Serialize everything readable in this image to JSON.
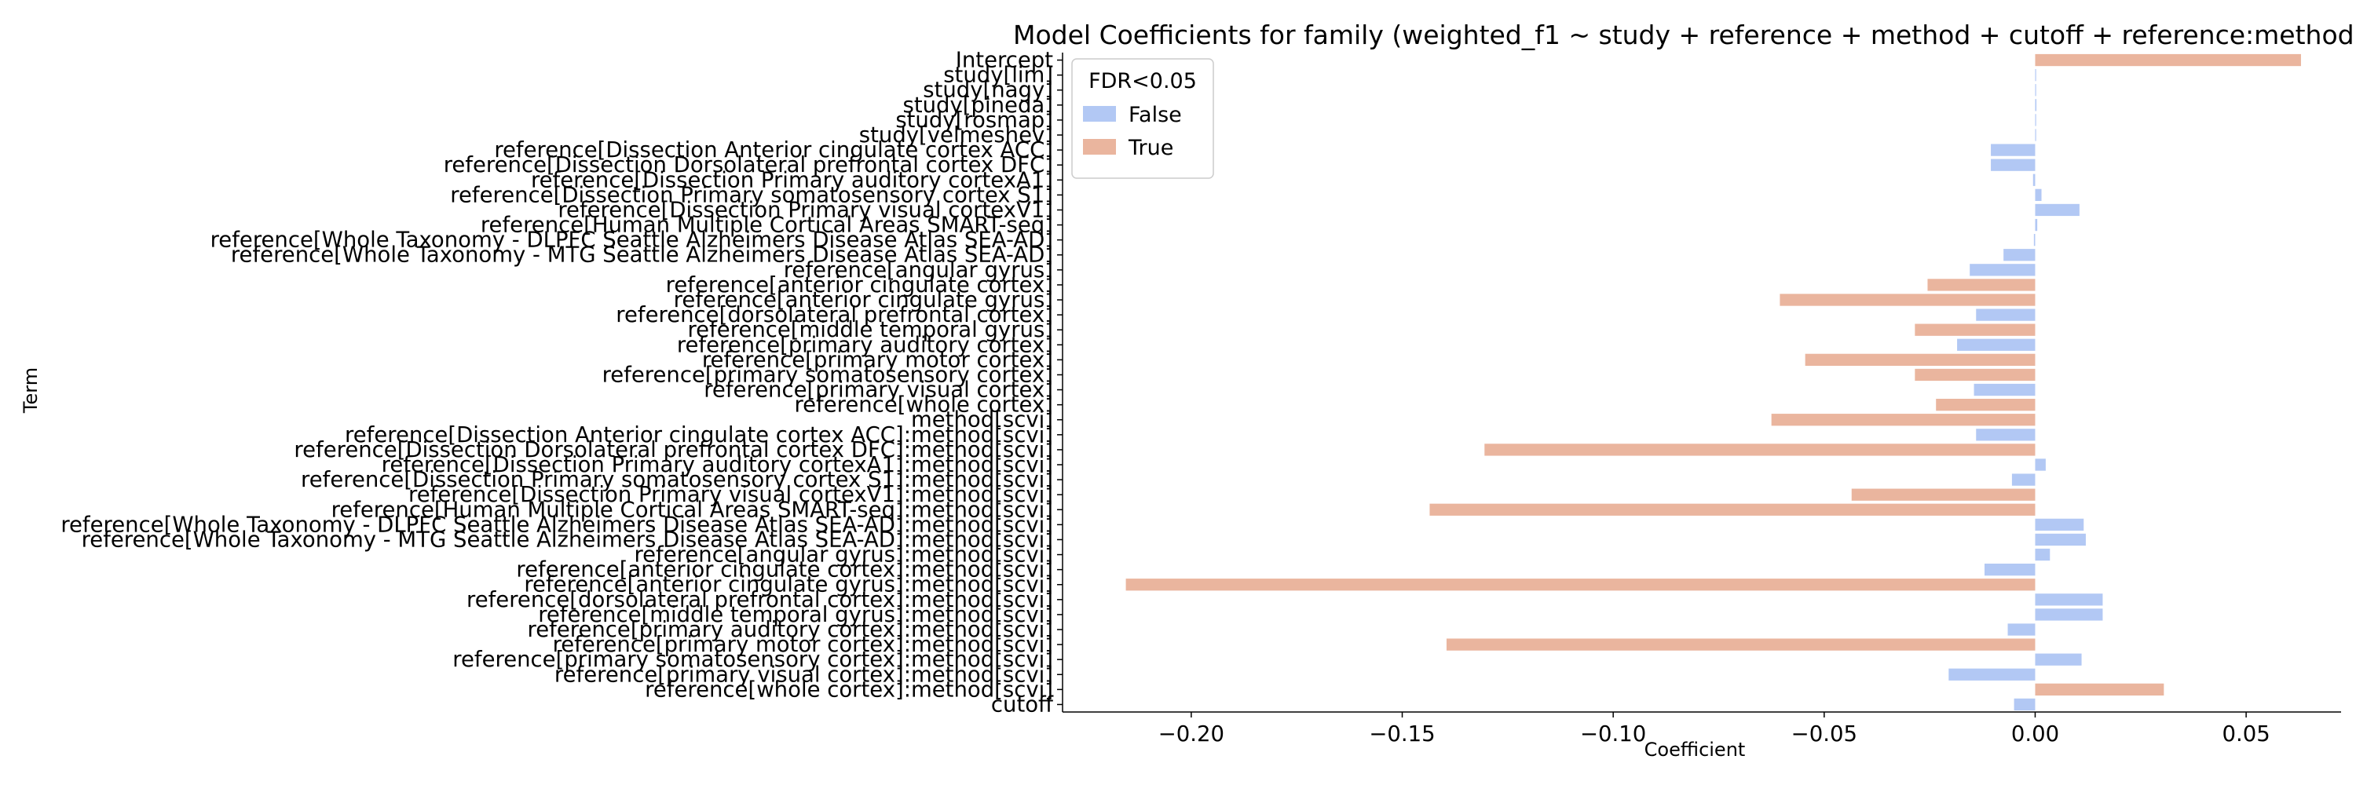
{
  "colors": {
    "False": "#b2c8f4",
    "True": "#eab59e",
    "axis": "#000000",
    "zero": "#b2c8f4"
  },
  "chart_data": {
    "type": "bar",
    "orientation": "horizontal",
    "title": "Model Coefficients for family (weighted_f1 ~ study + reference + method + cutoff + reference:method",
    "xlabel": "Coefficient",
    "ylabel": "Term",
    "xlim": [
      -0.2305,
      0.0725
    ],
    "xticks": [
      -0.2,
      -0.15,
      -0.1,
      -0.05,
      0.0,
      0.05
    ],
    "xtick_labels": [
      "−0.20",
      "−0.15",
      "−0.10",
      "−0.05",
      "0.00",
      "0.05"
    ],
    "grid": false,
    "legend": {
      "title": "FDR<0.05",
      "placement": "top-left",
      "entries": [
        {
          "label": "False",
          "key": "False"
        },
        {
          "label": "True",
          "key": "True"
        }
      ]
    },
    "terms": [
      {
        "label": "Intercept",
        "value": 0.063,
        "fdr": "True"
      },
      {
        "label": "study[lim]",
        "value": 0.0,
        "fdr": "False"
      },
      {
        "label": "study[nagy]",
        "value": 0.0002,
        "fdr": "False"
      },
      {
        "label": "study[pineda]",
        "value": 0.0003,
        "fdr": "False"
      },
      {
        "label": "study[rosmap]",
        "value": 0.0002,
        "fdr": "False"
      },
      {
        "label": "study[velmeshev]",
        "value": 0.0,
        "fdr": "False"
      },
      {
        "label": "reference[Dissection Anterior cingulate cortex ACC]",
        "value": -0.0105,
        "fdr": "False"
      },
      {
        "label": "reference[Dissection Dorsolateral prefrontal cortex DFC]",
        "value": -0.0105,
        "fdr": "False"
      },
      {
        "label": "reference[Dissection Primary auditory cortexA1]",
        "value": -0.0005,
        "fdr": "False"
      },
      {
        "label": "reference[Dissection Primary somatosensory cortex S1]",
        "value": 0.0015,
        "fdr": "False"
      },
      {
        "label": "reference[Dissection Primary visual cortexV1]",
        "value": 0.0105,
        "fdr": "False"
      },
      {
        "label": "reference[Human Multiple Cortical Areas SMART-seq]",
        "value": 0.0005,
        "fdr": "False"
      },
      {
        "label": "reference[Whole Taxonomy - DLPFC Seattle Alzheimers Disease Atlas SEA-AD]",
        "value": -0.0003,
        "fdr": "False"
      },
      {
        "label": "reference[Whole Taxonomy - MTG Seattle Alzheimers Disease Atlas SEA-AD]",
        "value": -0.0075,
        "fdr": "False"
      },
      {
        "label": "reference[angular gyrus]",
        "value": -0.0155,
        "fdr": "False"
      },
      {
        "label": "reference[anterior cingulate cortex]",
        "value": -0.0255,
        "fdr": "True"
      },
      {
        "label": "reference[anterior cingulate gyrus]",
        "value": -0.0605,
        "fdr": "True"
      },
      {
        "label": "reference[dorsolateral prefrontal cortex]",
        "value": -0.014,
        "fdr": "False"
      },
      {
        "label": "reference[middle temporal gyrus]",
        "value": -0.0285,
        "fdr": "True"
      },
      {
        "label": "reference[primary auditory cortex]",
        "value": -0.0185,
        "fdr": "False"
      },
      {
        "label": "reference[primary motor cortex]",
        "value": -0.0545,
        "fdr": "True"
      },
      {
        "label": "reference[primary somatosensory cortex]",
        "value": -0.0285,
        "fdr": "True"
      },
      {
        "label": "reference[primary visual cortex]",
        "value": -0.0145,
        "fdr": "False"
      },
      {
        "label": "reference[whole cortex]",
        "value": -0.0235,
        "fdr": "True"
      },
      {
        "label": "method[scvi]",
        "value": -0.0625,
        "fdr": "True"
      },
      {
        "label": "reference[Dissection Anterior cingulate cortex ACC]:method[scvi]",
        "value": -0.014,
        "fdr": "False"
      },
      {
        "label": "reference[Dissection Dorsolateral prefrontal cortex DFC]:method[scvi]",
        "value": -0.1305,
        "fdr": "True"
      },
      {
        "label": "reference[Dissection Primary auditory cortexA1]:method[scvi]",
        "value": 0.0025,
        "fdr": "False"
      },
      {
        "label": "reference[Dissection Primary somatosensory cortex S1]:method[scvi]",
        "value": -0.0055,
        "fdr": "False"
      },
      {
        "label": "reference[Dissection Primary visual cortexV1]:method[scvi]",
        "value": -0.0435,
        "fdr": "True"
      },
      {
        "label": "reference[Human Multiple Cortical Areas SMART-seq]:method[scvi]",
        "value": -0.1435,
        "fdr": "True"
      },
      {
        "label": "reference[Whole Taxonomy - DLPFC Seattle Alzheimers Disease Atlas SEA-AD]:method[scvi]",
        "value": 0.0115,
        "fdr": "False"
      },
      {
        "label": "reference[Whole Taxonomy - MTG Seattle Alzheimers Disease Atlas SEA-AD]:method[scvi]",
        "value": 0.012,
        "fdr": "False"
      },
      {
        "label": "reference[angular gyrus]:method[scvi]",
        "value": 0.0035,
        "fdr": "False"
      },
      {
        "label": "reference[anterior cingulate cortex]:method[scvi]",
        "value": -0.012,
        "fdr": "False"
      },
      {
        "label": "reference[anterior cingulate gyrus]:method[scvi]",
        "value": -0.2155,
        "fdr": "True"
      },
      {
        "label": "reference[dorsolateral prefrontal cortex]:method[scvi]",
        "value": 0.016,
        "fdr": "False"
      },
      {
        "label": "reference[middle temporal gyrus]:method[scvi]",
        "value": 0.016,
        "fdr": "False"
      },
      {
        "label": "reference[primary auditory cortex]:method[scvi]",
        "value": -0.0065,
        "fdr": "False"
      },
      {
        "label": "reference[primary motor cortex]:method[scvi]",
        "value": -0.1395,
        "fdr": "True"
      },
      {
        "label": "reference[primary somatosensory cortex]:method[scvi]",
        "value": 0.011,
        "fdr": "False"
      },
      {
        "label": "reference[primary visual cortex]:method[scvi]",
        "value": -0.0205,
        "fdr": "False"
      },
      {
        "label": "reference[whole cortex]:method[scvi]",
        "value": 0.0305,
        "fdr": "True"
      },
      {
        "label": "cutoff",
        "value": -0.005,
        "fdr": "False"
      }
    ]
  }
}
